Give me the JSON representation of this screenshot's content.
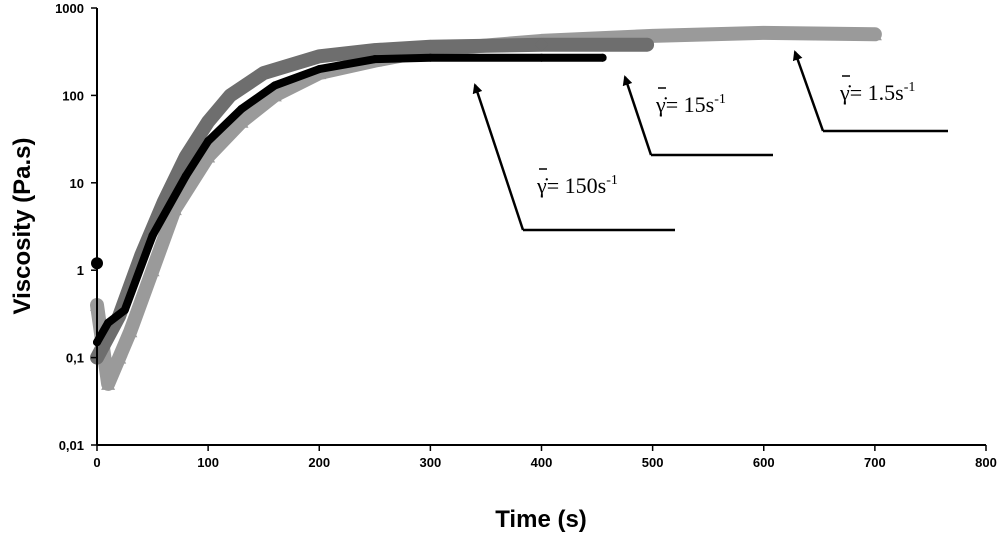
{
  "chart_data": {
    "type": "scatter",
    "title": "",
    "xlabel": "Time (s)",
    "ylabel": "Viscosity (Pa.s)",
    "xlim": [
      0,
      800
    ],
    "ylim": [
      0.01,
      1000
    ],
    "yscale": "log",
    "grid": false,
    "x_ticks": [
      "0",
      "100",
      "200",
      "300",
      "400",
      "500",
      "600",
      "700",
      "800"
    ],
    "y_ticks": [
      "0,01",
      "0,1",
      "1",
      "10",
      "100",
      "1000"
    ],
    "series": [
      {
        "name": "1.5 s-1",
        "color": "#9a9a9a",
        "marker": "triangle",
        "x": [
          0,
          10,
          20,
          30,
          50,
          70,
          100,
          130,
          160,
          200,
          250,
          300,
          400,
          500,
          600,
          700
        ],
        "y": [
          0.4,
          0.05,
          0.1,
          0.2,
          1,
          5,
          20,
          50,
          100,
          180,
          250,
          330,
          420,
          480,
          520,
          500
        ]
      },
      {
        "name": "15 s-1",
        "color": "#6e6e6e",
        "marker": "diamond",
        "x": [
          0,
          20,
          40,
          60,
          80,
          100,
          120,
          150,
          200,
          250,
          300,
          400,
          495
        ],
        "y": [
          0.1,
          0.3,
          1.5,
          6,
          20,
          50,
          100,
          180,
          280,
          330,
          360,
          380,
          380
        ]
      },
      {
        "name": "150 s-1",
        "color": "#000000",
        "marker": "circle",
        "x": [
          0,
          10,
          25,
          50,
          80,
          100,
          130,
          160,
          200,
          250,
          300,
          400,
          455
        ],
        "y": [
          0.15,
          0.25,
          0.35,
          2.5,
          12,
          30,
          70,
          130,
          200,
          260,
          270,
          270,
          270
        ]
      }
    ],
    "outlier": {
      "series": "150 s-1",
      "x": 0,
      "y": 1.2
    },
    "annotations": [
      {
        "text": "γ̇̄= 150s-1",
        "base": "γ̇= 150s",
        "sup": "-1",
        "target_x": 340,
        "target_y": 200
      },
      {
        "text": "γ̇̄= 15s-1",
        "base": "γ̇= 15s",
        "sup": "-1",
        "target_x": 475,
        "target_y": 350
      },
      {
        "text": "γ̇̄= 1.5s-1",
        "base": "γ̇= 1.5s",
        "sup": "-1",
        "target_x": 625,
        "target_y": 520
      }
    ]
  }
}
